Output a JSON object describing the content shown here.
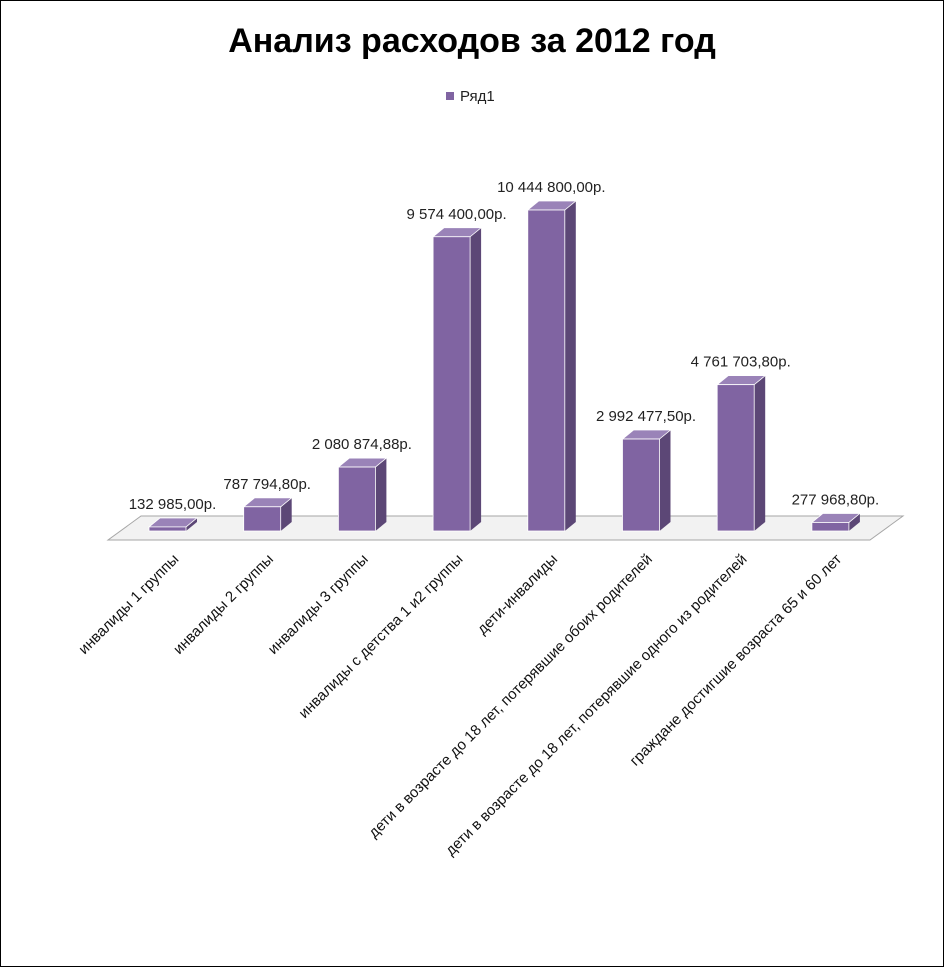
{
  "chart_data": {
    "type": "bar",
    "title": "Анализ расходов за 2012 год",
    "legend": {
      "position": "top",
      "entries": [
        "Ряд1"
      ]
    },
    "series": [
      {
        "name": "Ряд1",
        "values": [
          132985.0,
          787794.8,
          2080874.88,
          9574400.0,
          10444800.0,
          2992477.5,
          4761703.8,
          277968.8
        ]
      }
    ],
    "categories": [
      "инвалиды 1 группы",
      "инвалиды 2 группы",
      "инвалиды 3 группы",
      "инвалиды с детства 1 и2 группы",
      "дети-инвалиды",
      "дети в возрасте до 18 лет, потерявшие обоих родителей",
      "дети в возрасте до 18 лет, потерявшие одного из родителей",
      "граждане достигшие возраста 65 и 60 лет"
    ],
    "data_labels": [
      "132 985,00р.",
      "787 794,80р.",
      "2 080 874,88р.",
      "9 574 400,00р.",
      "10 444 800,00р.",
      "2 992 477,50р.",
      "4 761 703,80р.",
      "277 968,80р."
    ],
    "style": "3d-column",
    "grid": false,
    "colors": {
      "front": "#8064a2",
      "side": "#5c4776",
      "top": "#9a83b8",
      "floor": "#f2f2f2",
      "floor_edge": "#a6a6a6",
      "border": "#000000"
    }
  }
}
